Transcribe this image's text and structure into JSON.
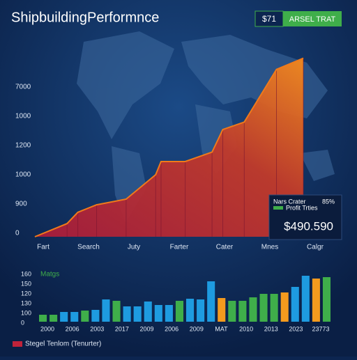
{
  "header": {
    "badge": "$71",
    "button": "ARSEL TRAT"
  },
  "summary_box": {
    "title": "Nars Crater",
    "percent": "85%",
    "legend": "Profit Trties",
    "amount": "$490.590"
  },
  "chart_data": [
    {
      "type": "area",
      "title": "ShipbuildingPerformnce",
      "x": [
        0,
        12,
        16,
        23,
        34,
        45,
        47,
        56,
        66,
        70,
        78,
        90,
        100
      ],
      "values": [
        0,
        7,
        13,
        17,
        20,
        33,
        40,
        40,
        45,
        57,
        61,
        89,
        95
      ],
      "xlim": [
        0,
        100
      ],
      "ylim": [
        0,
        100
      ],
      "y_axis_labels": [
        "7000",
        "1000",
        "1200",
        "1000",
        "900",
        "0"
      ],
      "x_axis_labels": [
        "Fart",
        "Search",
        "Juty",
        "Farter",
        "Cater",
        "Mnes",
        "Calgr"
      ],
      "color": "#f07a1a"
    },
    {
      "type": "bar",
      "title": "Matgs",
      "values": [
        10,
        10,
        14,
        14,
        16,
        17,
        32,
        30,
        22,
        22,
        29,
        24,
        24,
        30,
        33,
        32,
        58,
        34,
        30,
        30,
        35,
        40,
        40,
        42,
        50,
        66,
        62,
        64
      ],
      "colors": [
        "#3fae4a",
        "#3fae4a",
        "#1e9be0",
        "#1e9be0",
        "#3fae4a",
        "#1e9be0",
        "#1e9be0",
        "#3fae4a",
        "#1e9be0",
        "#1e9be0",
        "#1e9be0",
        "#1e9be0",
        "#1e9be0",
        "#3fae4a",
        "#1e9be0",
        "#1e9be0",
        "#1e9be0",
        "#f39a1e",
        "#3fae4a",
        "#3fae4a",
        "#3fae4a",
        "#3fae4a",
        "#3fae4a",
        "#f39a1e",
        "#1e9be0",
        "#1e9be0",
        "#f39a1e",
        "#3fae4a"
      ],
      "ylim": [
        0,
        70
      ],
      "y_axis_labels": [
        "160",
        "150",
        "120",
        "130",
        "100",
        "0"
      ],
      "x_axis_labels": [
        "2000",
        "2006",
        "2003",
        "2017",
        "2009",
        "2006",
        "2009",
        "MAT",
        "2010",
        "2013",
        "2023",
        "23773"
      ],
      "legend": "Stegel Tenlom (Tenurter)",
      "legend_color": "#c0233a"
    }
  ]
}
